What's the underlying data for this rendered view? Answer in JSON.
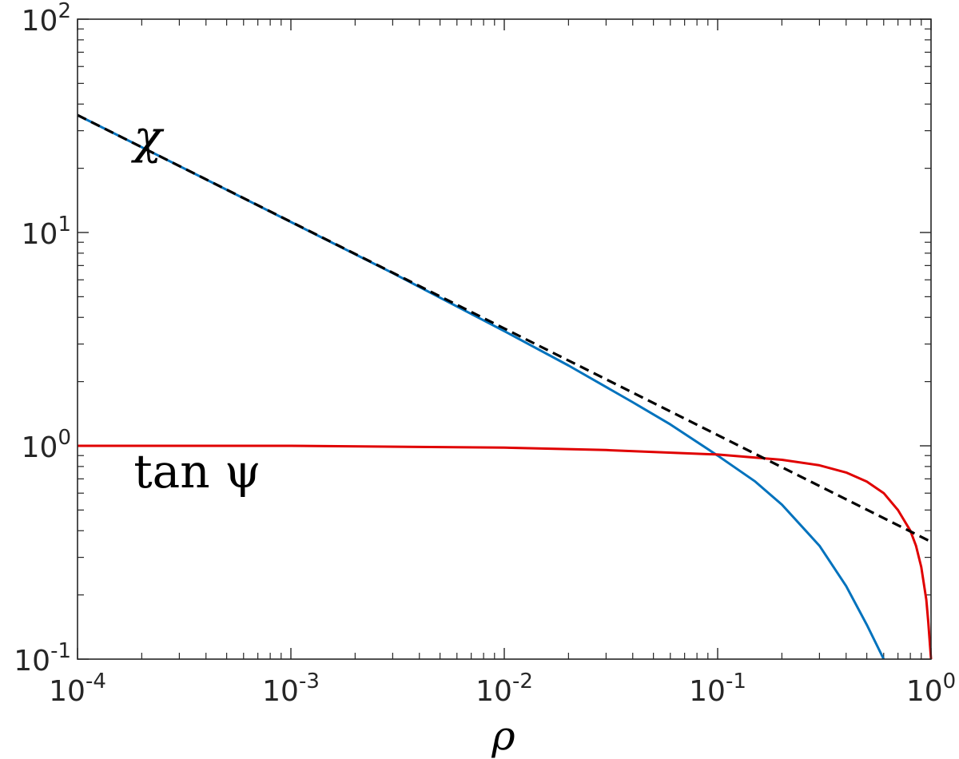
{
  "chart_data": {
    "type": "line",
    "xscale": "log",
    "yscale": "log",
    "xlim": [
      0.0001,
      1
    ],
    "ylim": [
      0.1,
      100
    ],
    "grid": false,
    "box": true,
    "xlabel": "ρ",
    "ylabel": "",
    "xticks": [
      {
        "value": 0.0001,
        "base": "10",
        "exp": "-4"
      },
      {
        "value": 0.001,
        "base": "10",
        "exp": "-3"
      },
      {
        "value": 0.01,
        "base": "10",
        "exp": "-2"
      },
      {
        "value": 0.1,
        "base": "10",
        "exp": "-1"
      },
      {
        "value": 1,
        "base": "10",
        "exp": "0"
      }
    ],
    "yticks": [
      {
        "value": 0.1,
        "base": "10",
        "exp": "-1"
      },
      {
        "value": 1,
        "base": "10",
        "exp": "0"
      },
      {
        "value": 10,
        "base": "10",
        "exp": "1"
      },
      {
        "value": 100,
        "base": "10",
        "exp": "2"
      }
    ],
    "series": [
      {
        "color": "#0072bd",
        "style": "solid",
        "x": [
          0.0001,
          0.0003,
          0.001,
          0.003,
          0.01,
          0.02,
          0.04,
          0.06,
          0.1,
          0.15,
          0.2,
          0.3,
          0.4,
          0.5,
          0.6
        ],
        "y": [
          35.5,
          20.5,
          11.2,
          6.45,
          3.45,
          2.38,
          1.6,
          1.26,
          0.9,
          0.68,
          0.53,
          0.34,
          0.22,
          0.145,
          0.1
        ]
      },
      {
        "color": "#e00000",
        "style": "solid",
        "x": [
          0.0001,
          0.001,
          0.01,
          0.03,
          0.1,
          0.2,
          0.3,
          0.4,
          0.5,
          0.6,
          0.7,
          0.8,
          0.85,
          0.9,
          0.95,
          0.97,
          1.0
        ],
        "y": [
          1.0,
          1.0,
          0.98,
          0.955,
          0.91,
          0.86,
          0.81,
          0.75,
          0.68,
          0.6,
          0.5,
          0.4,
          0.34,
          0.27,
          0.19,
          0.15,
          0.1
        ]
      },
      {
        "color": "#000000",
        "style": "dashed",
        "x": [
          0.0001,
          1
        ],
        "y": [
          35.5,
          0.355
        ]
      }
    ],
    "annotations": [
      {
        "text": "χ",
        "x": 0.0002,
        "y": 28
      },
      {
        "text": "tan ψ",
        "x": 0.0002,
        "y": 0.76
      }
    ]
  }
}
